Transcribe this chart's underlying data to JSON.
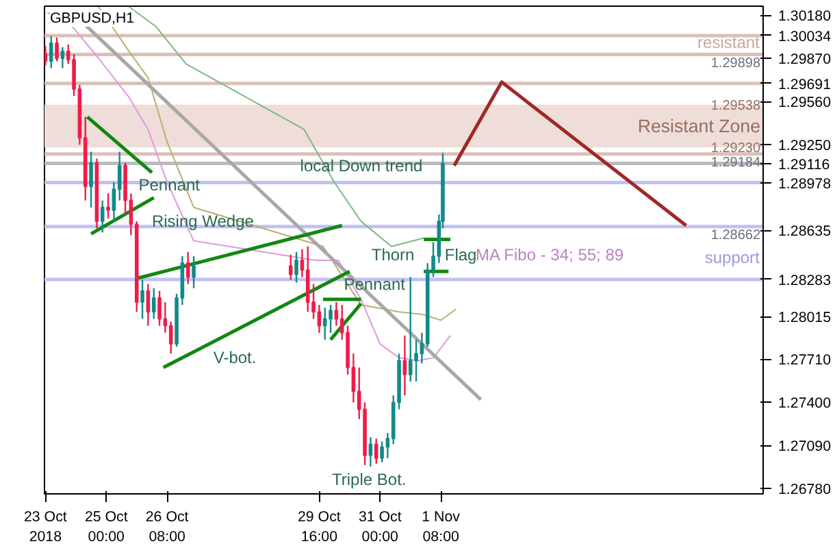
{
  "chart_data": {
    "type": "candlestick",
    "title": "GBPUSD,H1",
    "x": [
      "2018-10-23T16:00",
      "2018-10-23T19:00",
      "2018-10-23T22:00",
      "2018-10-24T01:00",
      "2018-10-24T04:00",
      "2018-10-24T07:00",
      "2018-10-24T10:00",
      "2018-10-24T13:00",
      "2018-10-24T16:00",
      "2018-10-24T19:00",
      "2018-10-24T22:00",
      "2018-10-25T01:00",
      "2018-10-25T04:00",
      "2018-10-25T07:00",
      "2018-10-25T10:00",
      "2018-10-25T13:00",
      "2018-10-25T16:00",
      "2018-10-25T19:00",
      "2018-10-25T22:00",
      "2018-10-26T01:00",
      "2018-10-26T04:00",
      "2018-10-26T07:00",
      "2018-10-26T10:00",
      "2018-10-26T13:00",
      "2018-10-26T16:00",
      "2018-10-26T19:00",
      "2018-10-26T22:00",
      "2018-10-29T01:00",
      "2018-10-29T04:00",
      "2018-10-29T07:00",
      "2018-10-29T10:00",
      "2018-10-29T13:00",
      "2018-10-29T16:00",
      "2018-10-29T19:00",
      "2018-10-29T22:00",
      "2018-10-30T01:00",
      "2018-10-30T04:00",
      "2018-10-30T07:00",
      "2018-10-30T10:00",
      "2018-10-30T13:00",
      "2018-10-30T16:00",
      "2018-10-30T19:00",
      "2018-10-30T22:00",
      "2018-10-31T01:00",
      "2018-10-31T04:00",
      "2018-10-31T07:00",
      "2018-10-31T10:00",
      "2018-10-31T13:00",
      "2018-10-31T16:00",
      "2018-10-31T19:00",
      "2018-10-31T22:00",
      "2018-11-01T01:00",
      "2018-11-01T04:00",
      "2018-11-01T07:00",
      "2018-11-01T09:00"
    ],
    "ohlc": [
      [
        1.299,
        1.2996,
        1.2982,
        1.2985
      ],
      [
        1.2985,
        1.3003,
        1.298,
        1.2998
      ],
      [
        1.2998,
        1.3002,
        1.2985,
        1.2987
      ],
      [
        1.2987,
        1.2995,
        1.298,
        1.2992
      ],
      [
        1.2992,
        1.2997,
        1.2983,
        1.2986
      ],
      [
        1.2986,
        1.299,
        1.296,
        1.2965
      ],
      [
        1.2965,
        1.2968,
        1.2925,
        1.293
      ],
      [
        1.293,
        1.2945,
        1.2885,
        1.2895
      ],
      [
        1.2895,
        1.292,
        1.288,
        1.2912
      ],
      [
        1.2912,
        1.2915,
        1.2865,
        1.287
      ],
      [
        1.287,
        1.2885,
        1.2862,
        1.288
      ],
      [
        1.288,
        1.289,
        1.2872,
        1.2878
      ],
      [
        1.2878,
        1.2898,
        1.287,
        1.2893
      ],
      [
        1.2893,
        1.292,
        1.2885,
        1.291
      ],
      [
        1.291,
        1.2912,
        1.2875,
        1.2885
      ],
      [
        1.2885,
        1.289,
        1.286,
        1.2868
      ],
      [
        1.2868,
        1.287,
        1.2805,
        1.2812
      ],
      [
        1.2812,
        1.2828,
        1.28,
        1.282
      ],
      [
        1.282,
        1.2825,
        1.2795,
        1.2805
      ],
      [
        1.2805,
        1.2822,
        1.28,
        1.2815
      ],
      [
        1.2815,
        1.282,
        1.2795,
        1.28
      ],
      [
        1.28,
        1.2812,
        1.279,
        1.2795
      ],
      [
        1.2795,
        1.2798,
        1.2775,
        1.2782
      ],
      [
        1.2782,
        1.2818,
        1.278,
        1.2815
      ],
      [
        1.2815,
        1.2845,
        1.281,
        1.284
      ],
      [
        1.284,
        1.2848,
        1.2825,
        1.283
      ],
      [
        1.283,
        1.2845,
        1.2822,
        1.2838
      ],
      [
        1.2838,
        1.2846,
        1.2828,
        1.2832
      ],
      [
        1.2832,
        1.2848,
        1.2826,
        1.2842
      ],
      [
        1.2842,
        1.285,
        1.283,
        1.2835
      ],
      [
        1.2835,
        1.2852,
        1.2805,
        1.2812
      ],
      [
        1.2812,
        1.2825,
        1.28,
        1.2805
      ],
      [
        1.2805,
        1.281,
        1.279,
        1.2795
      ],
      [
        1.2795,
        1.2808,
        1.2785,
        1.28
      ],
      [
        1.28,
        1.281,
        1.279,
        1.2806
      ],
      [
        1.2806,
        1.2812,
        1.2795,
        1.28
      ],
      [
        1.28,
        1.281,
        1.2785,
        1.279
      ],
      [
        1.279,
        1.2795,
        1.276,
        1.2765
      ],
      [
        1.2765,
        1.2775,
        1.274,
        1.2748
      ],
      [
        1.2748,
        1.2765,
        1.2728,
        1.2735
      ],
      [
        1.2735,
        1.274,
        1.2695,
        1.2702
      ],
      [
        1.2702,
        1.2715,
        1.2694,
        1.271
      ],
      [
        1.271,
        1.2714,
        1.2696,
        1.27
      ],
      [
        1.27,
        1.2712,
        1.2697,
        1.2708
      ],
      [
        1.2708,
        1.2718,
        1.27,
        1.2714
      ],
      [
        1.2714,
        1.2745,
        1.271,
        1.274
      ],
      [
        1.274,
        1.2775,
        1.2735,
        1.277
      ],
      [
        1.277,
        1.2788,
        1.2745,
        1.276
      ],
      [
        1.276,
        1.283,
        1.2755,
        1.277
      ],
      [
        1.277,
        1.2785,
        1.2755,
        1.2775
      ],
      [
        1.2775,
        1.279,
        1.2768,
        1.2782
      ],
      [
        1.2782,
        1.284,
        1.278,
        1.2835
      ],
      [
        1.2835,
        1.2855,
        1.283,
        1.2845
      ],
      [
        1.2845,
        1.2875,
        1.284,
        1.287
      ],
      [
        1.287,
        1.2919,
        1.2865,
        1.29116
      ]
    ],
    "series": [
      {
        "type": "line",
        "color": "#dd99dd",
        "x": [
          "2018-10-23T17:00",
          "2018-10-24T06:00",
          "2018-10-24T20:00",
          "2018-10-25T12:00",
          "2018-10-25T22:00",
          "2018-10-26T08:00",
          "2018-10-26T22:00",
          "2018-10-29T14:00",
          "2018-10-30T02:00",
          "2018-10-30T14:00",
          "2018-10-31T00:00",
          "2018-10-31T10:00",
          "2018-10-31T20:00",
          "2018-11-01T04:00",
          "2018-11-01T13:00"
        ],
        "values": [
          1.302,
          1.301,
          1.2987,
          1.2959,
          1.2936,
          1.2898,
          1.2856,
          1.2842,
          1.2842,
          1.2814,
          1.2782,
          1.2772,
          1.277,
          1.2772,
          1.2788
        ]
      },
      {
        "type": "line",
        "color": "#b8b070",
        "x": [
          "2018-10-24T20:00",
          "2018-10-25T12:00",
          "2018-10-25T22:00",
          "2018-10-26T08:00",
          "2018-10-26T22:00",
          "2018-10-29T18:00",
          "2018-10-30T14:00",
          "2018-10-31T10:00",
          "2018-10-31T23:00",
          "2018-11-01T08:00",
          "2018-11-01T16:00"
        ],
        "values": [
          1.3024,
          1.2992,
          1.2973,
          1.2927,
          1.288,
          1.2852,
          1.281,
          1.2805,
          1.2803,
          1.2799,
          1.2807
        ]
      },
      {
        "type": "line",
        "color": "#80b880",
        "x": [
          "2018-10-25T12:00",
          "2018-10-26T02:00",
          "2018-10-26T18:00",
          "2018-10-29T08:00",
          "2018-10-30T00:00",
          "2018-10-30T14:00",
          "2018-10-31T06:00",
          "2018-10-31T23:00"
        ],
        "values": [
          1.3024,
          1.301,
          1.2983,
          1.2936,
          1.2898,
          1.287,
          1.2852,
          1.2858
        ]
      },
      {
        "type": "line",
        "color": "#a8a8a8",
        "x": [
          "2018-10-24T06:00",
          "2018-11-02T05:00"
        ],
        "values": [
          1.302,
          1.2742
        ]
      },
      {
        "type": "line",
        "color": "#118811",
        "x": [
          "2018-10-24T14:00",
          "2018-10-26T00:00"
        ],
        "values": [
          1.2945,
          1.2905
        ]
      },
      {
        "type": "line",
        "color": "#118811",
        "x": [
          "2018-10-24T16:00",
          "2018-10-26T01:00"
        ],
        "values": [
          1.2861,
          1.2887
        ]
      },
      {
        "type": "line",
        "color": "#118811",
        "x": [
          "2018-10-25T16:00",
          "2018-10-30T04:00"
        ],
        "values": [
          1.2829,
          1.2867
        ]
      },
      {
        "type": "line",
        "color": "#118811",
        "x": [
          "2018-10-26T06:00",
          "2018-10-30T08:00"
        ],
        "values": [
          1.2765,
          1.2834
        ]
      },
      {
        "type": "line",
        "color": "#118811",
        "x": [
          "2018-10-29T18:00",
          "2018-10-30T14:00"
        ],
        "values": [
          1.2814,
          1.2814
        ]
      },
      {
        "type": "line",
        "color": "#118811",
        "x": [
          "2018-10-29T22:00",
          "2018-10-30T14:00"
        ],
        "values": [
          1.2785,
          1.2811
        ]
      },
      {
        "type": "line",
        "color": "#118811",
        "x": [
          "2018-10-31T23:00",
          "2018-11-01T13:00"
        ],
        "values": [
          1.2857,
          1.2857
        ]
      },
      {
        "type": "line",
        "color": "#118811",
        "x": [
          "2018-10-31T23:00",
          "2018-11-01T12:00"
        ],
        "values": [
          1.2834,
          1.2834
        ]
      },
      {
        "type": "line",
        "color": "#a02828",
        "x": [
          "2018-11-01T15:00",
          "2018-11-02T16:00",
          "2018-11-06T17:00"
        ],
        "values": [
          1.291,
          1.297,
          1.2867
        ]
      }
    ],
    "xlim": [
      "2018-10-23T15:30",
      "2018-11-08T09:30"
    ],
    "xticks": [
      {
        "value": "2018-10-23T16:00",
        "label": "23 Oct 2018"
      },
      {
        "value": "2018-10-25T00:00",
        "label": "25 Oct 00:00"
      },
      {
        "value": "2018-10-26T08:00",
        "label": "26 Oct 08:00"
      },
      {
        "value": "2018-10-29T16:00",
        "label": "29 Oct 16:00"
      },
      {
        "value": "2018-10-31T00:00",
        "label": "31 Oct 00:00"
      },
      {
        "value": "2018-11-01T08:00",
        "label": "1 Nov 08:00"
      }
    ],
    "ylim": [
      1.26743,
      1.30245
    ],
    "yticks": [
      {
        "value": 1.3018,
        "label": "1.30180"
      },
      {
        "value": 1.30034,
        "label": "1.30034"
      },
      {
        "value": 1.2987,
        "label": "1.29870"
      },
      {
        "value": 1.29691,
        "label": "1.29691"
      },
      {
        "value": 1.2956,
        "label": "1.29560"
      },
      {
        "value": 1.2925,
        "label": "1.29250"
      },
      {
        "value": 1.29116,
        "label": "1.29116"
      },
      {
        "value": 1.28978,
        "label": "1.28978"
      },
      {
        "value": 1.28635,
        "label": "1.28635"
      },
      {
        "value": 1.28283,
        "label": "1.28283"
      },
      {
        "value": 1.28015,
        "label": "1.28015"
      },
      {
        "value": 1.2771,
        "label": "1.27710"
      },
      {
        "value": 1.274,
        "label": "1.27400"
      },
      {
        "value": 1.2709,
        "label": "1.27090"
      },
      {
        "value": 1.2678,
        "label": "1.26780"
      }
    ],
    "bands": [
      {
        "axis": "y",
        "from": 1.2923,
        "to": 1.29538,
        "label": "Resistant Zone",
        "color": "#eeddd9"
      }
    ],
    "ref_lines": [
      {
        "axis": "y",
        "value": 1.30034,
        "color": "#dcc0b8"
      },
      {
        "axis": "y",
        "value": 1.29898,
        "label": "1.29898",
        "color": "#dcc0b8"
      },
      {
        "axis": "y",
        "value": 1.29691,
        "color": "#dcc0b8"
      },
      {
        "axis": "y",
        "value": 1.29184,
        "label": "1.29184",
        "color": "#dcc0b8"
      },
      {
        "axis": "y",
        "value": 1.29116,
        "color": "#bbbbbb"
      },
      {
        "axis": "y",
        "value": 1.28978,
        "color": "#c0c0f4"
      },
      {
        "axis": "y",
        "value": 1.28662,
        "label": "1.28662",
        "color": "#c0c0f4"
      },
      {
        "axis": "y",
        "value": 1.28283,
        "color": "#c0c0f4"
      }
    ],
    "annotations": [
      "resistant",
      {
        "text": "1.29538",
        "x": "2018-11-08T09:30",
        "y": 1.29538
      },
      {
        "text": "1.29230",
        "x": "2018-11-08T09:30",
        "y": 1.2923
      },
      "support",
      {
        "text": "local Down trend",
        "x": "2018-10-29T06:00",
        "y": 1.291
      },
      {
        "text": "Pennant",
        "x": "2018-10-25T17:00",
        "y": 1.2896
      },
      {
        "text": "Rising Wedge",
        "x": "2018-10-26T00:00",
        "y": 1.287
      },
      {
        "text": "Pennant",
        "x": "2018-10-30T05:00",
        "y": 1.2825
      },
      "V-bot.",
      "Thorn",
      {
        "text": "Flag",
        "x": "2018-11-01T10:00",
        "y": 1.2846
      },
      "MA Fibo - 34; 55; 89",
      "Triple Bot."
    ]
  }
}
